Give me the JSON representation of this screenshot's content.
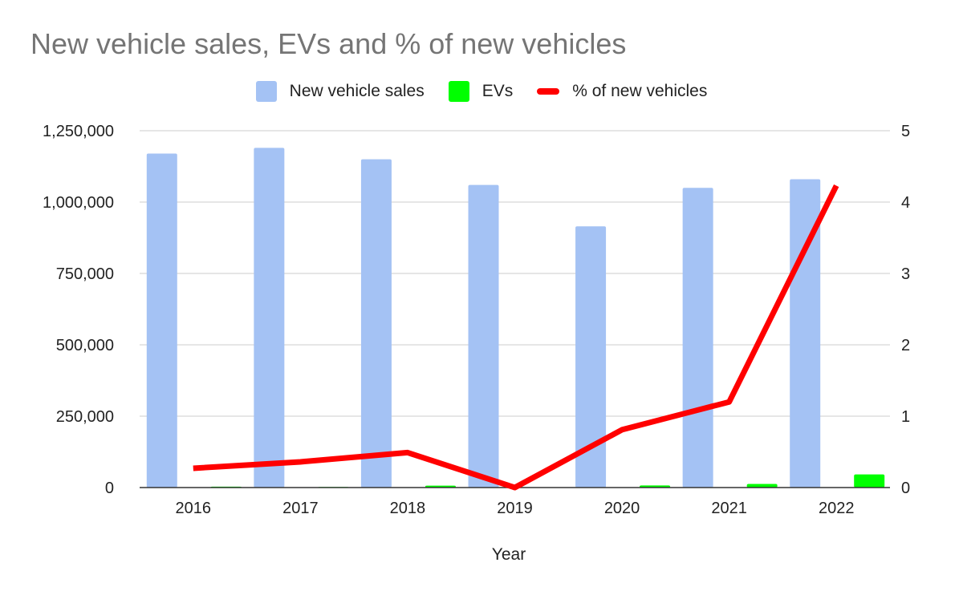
{
  "chart_data": {
    "type": "bar",
    "title": "New vehicle sales, EVs and % of new vehicles",
    "xlabel": "Year",
    "ylabel": "",
    "ylabel_right": "",
    "categories": [
      "2016",
      "2017",
      "2018",
      "2019",
      "2020",
      "2021",
      "2022"
    ],
    "ylim": [
      0,
      1250000
    ],
    "ylim_right": [
      0,
      5
    ],
    "yticks": [
      {
        "value": 0,
        "label": "0"
      },
      {
        "value": 250000,
        "label": "250,000"
      },
      {
        "value": 500000,
        "label": "500,000"
      },
      {
        "value": 750000,
        "label": "750,000"
      },
      {
        "value": 1000000,
        "label": "1,000,000"
      },
      {
        "value": 1250000,
        "label": "1,250,000"
      }
    ],
    "yticks_right": [
      {
        "value": 0,
        "label": "0"
      },
      {
        "value": 1,
        "label": "1"
      },
      {
        "value": 2,
        "label": "2"
      },
      {
        "value": 3,
        "label": "3"
      },
      {
        "value": 4,
        "label": "4"
      },
      {
        "value": 5,
        "label": "5"
      }
    ],
    "grid": true,
    "legend_position": "top-center",
    "series": [
      {
        "name": "New vehicle sales",
        "type": "bar",
        "axis": "left",
        "color": "#a4c2f4",
        "values": [
          1170000,
          1190000,
          1150000,
          1060000,
          915000,
          1050000,
          1080000
        ]
      },
      {
        "name": "EVs",
        "type": "bar",
        "axis": "left",
        "color": "#00ff00",
        "values": [
          3000,
          2000,
          6500,
          0,
          7500,
          12500,
          46000
        ]
      },
      {
        "name": "% of new vehicles",
        "type": "line",
        "axis": "right",
        "color": "#ff0000",
        "values": [
          0.27,
          0.36,
          0.49,
          0.0,
          0.81,
          1.2,
          4.23
        ]
      }
    ]
  }
}
